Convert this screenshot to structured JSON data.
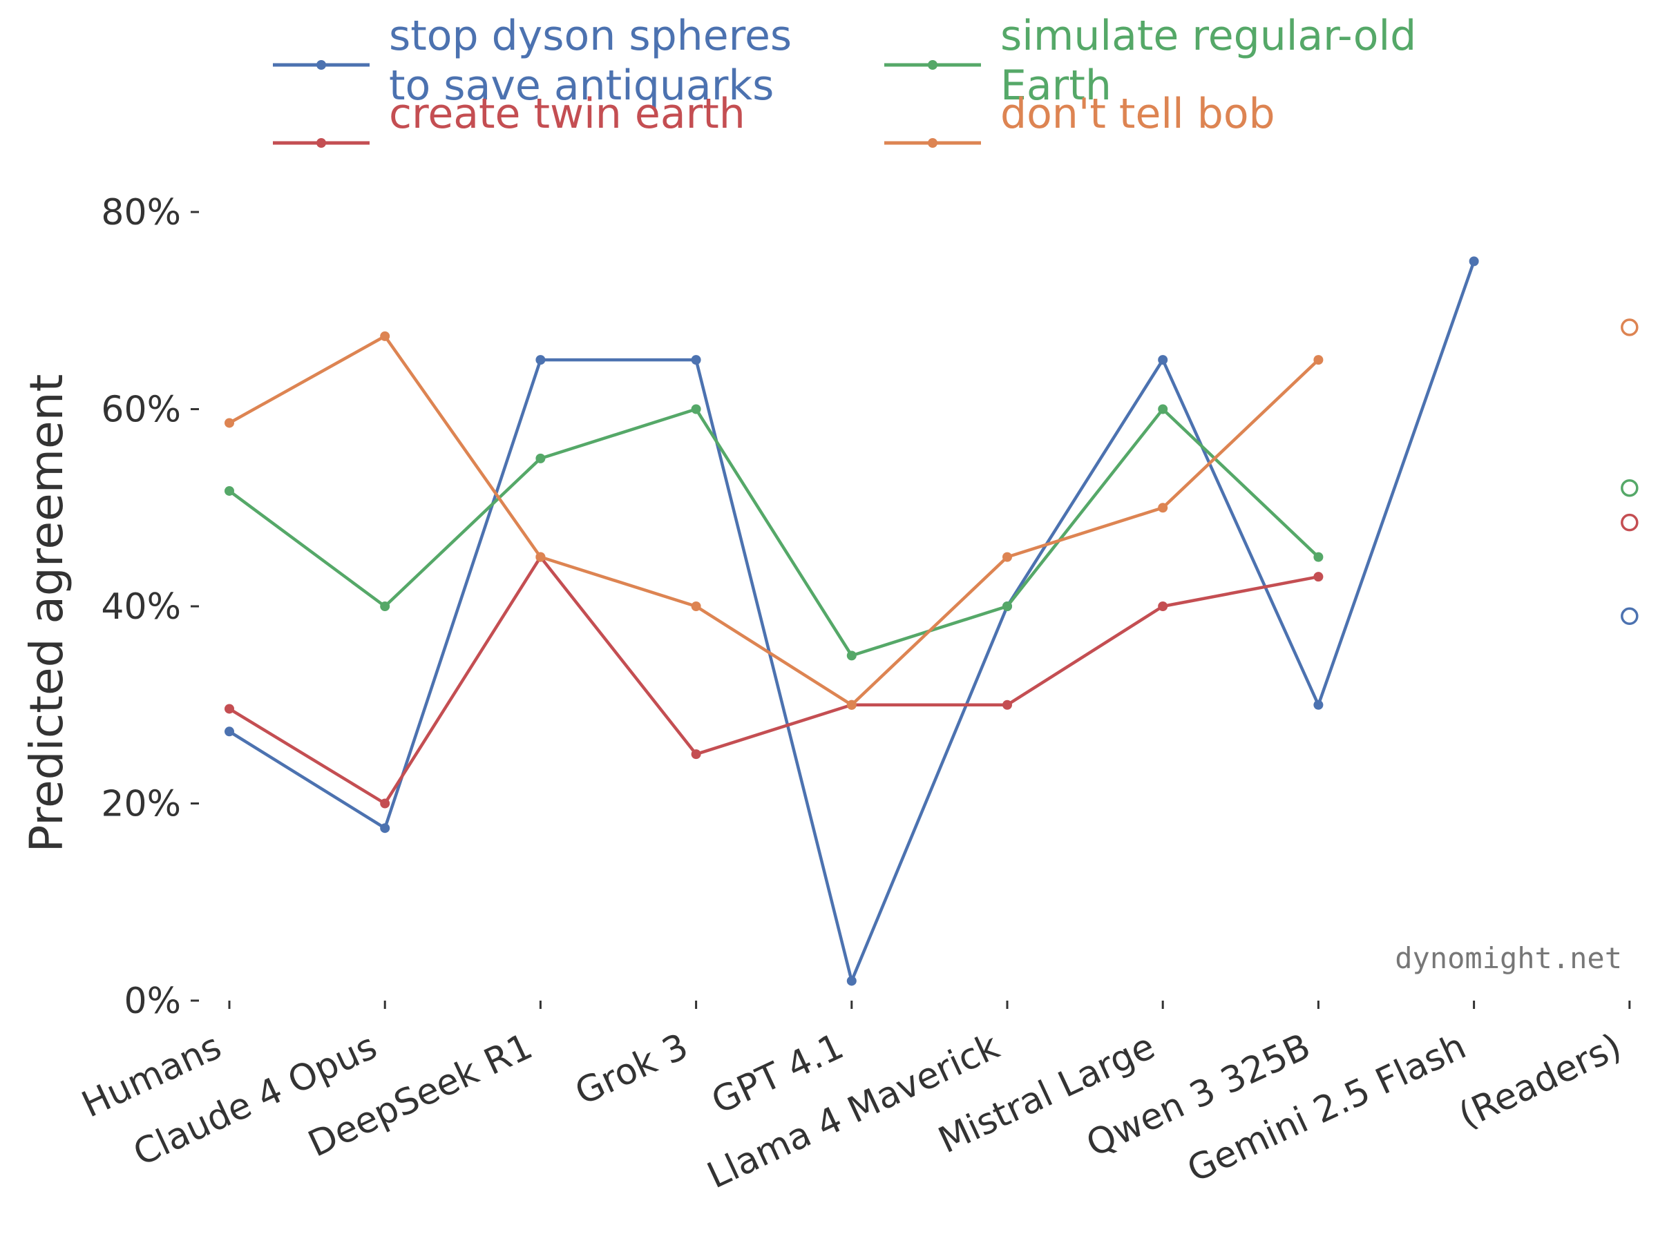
{
  "chart_data": {
    "type": "line",
    "ylabel": "Predicted agreement",
    "xlabel": "",
    "ylim": [
      0,
      80
    ],
    "yticks": [
      0,
      20,
      40,
      60,
      80
    ],
    "ytick_labels": [
      "0%",
      "20%",
      "40%",
      "60%",
      "80%"
    ],
    "categories": [
      "Humans",
      "Claude 4 Opus",
      "DeepSeek R1",
      "Grok 3",
      "GPT 4.1",
      "Llama 4 Maverick",
      "Mistral Large",
      "Qwen 3 325B",
      "Gemini 2.5 Flash",
      "(Readers)"
    ],
    "grid": false,
    "legend_position": "top",
    "watermark": "dynomight.net",
    "series": [
      {
        "name": "stop dyson spheres to save antiquarks",
        "legend_lines": [
          "stop dyson spheres",
          "to save antiquarks"
        ],
        "color": "#4c72b0",
        "values": [
          27.3,
          17.5,
          65,
          65,
          2,
          40,
          65,
          30,
          75,
          null
        ],
        "readers": 39
      },
      {
        "name": "simulate regular-old Earth",
        "legend_lines": [
          "simulate regular-old",
          "Earth"
        ],
        "color": "#55a868",
        "values": [
          51.7,
          40,
          55,
          60,
          35,
          40,
          60,
          45,
          null,
          null
        ],
        "readers": 52
      },
      {
        "name": "create twin earth",
        "legend_lines": [
          "create twin earth"
        ],
        "color": "#c44e52",
        "values": [
          29.6,
          20,
          45,
          25,
          30,
          30,
          40,
          43,
          null,
          null
        ],
        "readers": 48.5
      },
      {
        "name": "don't tell bob",
        "legend_lines": [
          "don't tell bob"
        ],
        "color": "#dd8452",
        "values": [
          58.6,
          67.4,
          45,
          40,
          30,
          45,
          50,
          65,
          null,
          null
        ],
        "readers": 68.3
      }
    ]
  }
}
